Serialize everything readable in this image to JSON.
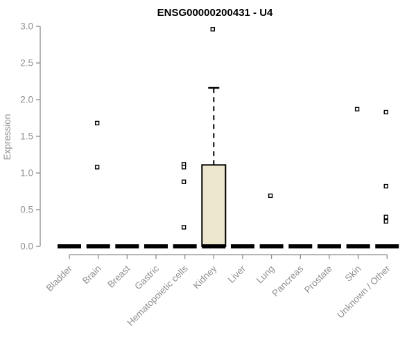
{
  "chart_data": {
    "type": "boxplot",
    "title": "ENSG00000200431 - U4",
    "ylabel": "Expression",
    "xlabel": "",
    "ylim": [
      0.0,
      3.0
    ],
    "yticks": [
      0.0,
      0.5,
      1.0,
      1.5,
      2.0,
      2.5,
      3.0
    ],
    "grid": false,
    "legend": false,
    "categories": [
      "Bladder",
      "Brain",
      "Breast",
      "Gastric",
      "Hematopoietic cells",
      "Kidney",
      "Liver",
      "Lung",
      "Pancreas",
      "Prostate",
      "Skin",
      "Unknown / Other"
    ],
    "boxes": [
      {
        "category": "Bladder",
        "q1": 0.0,
        "median": 0.0,
        "q3": 0.0,
        "whisker_low": 0.0,
        "whisker_high": 0.0,
        "outliers": []
      },
      {
        "category": "Brain",
        "q1": 0.0,
        "median": 0.0,
        "q3": 0.0,
        "whisker_low": 0.0,
        "whisker_high": 0.0,
        "outliers": [
          1.68,
          1.08
        ]
      },
      {
        "category": "Breast",
        "q1": 0.0,
        "median": 0.0,
        "q3": 0.0,
        "whisker_low": 0.0,
        "whisker_high": 0.0,
        "outliers": []
      },
      {
        "category": "Gastric",
        "q1": 0.0,
        "median": 0.0,
        "q3": 0.0,
        "whisker_low": 0.0,
        "whisker_high": 0.0,
        "outliers": []
      },
      {
        "category": "Hematopoietic cells",
        "q1": 0.0,
        "median": 0.0,
        "q3": 0.0,
        "whisker_low": 0.0,
        "whisker_high": 0.0,
        "outliers": [
          1.12,
          1.08,
          0.88,
          0.26
        ]
      },
      {
        "category": "Kidney",
        "q1": 0.0,
        "median": 0.0,
        "q3": 1.11,
        "whisker_low": 0.0,
        "whisker_high": 2.16,
        "outliers": [
          2.96
        ]
      },
      {
        "category": "Liver",
        "q1": 0.0,
        "median": 0.0,
        "q3": 0.0,
        "whisker_low": 0.0,
        "whisker_high": 0.0,
        "outliers": []
      },
      {
        "category": "Lung",
        "q1": 0.0,
        "median": 0.0,
        "q3": 0.0,
        "whisker_low": 0.0,
        "whisker_high": 0.0,
        "outliers": [
          0.69
        ]
      },
      {
        "category": "Pancreas",
        "q1": 0.0,
        "median": 0.0,
        "q3": 0.0,
        "whisker_low": 0.0,
        "whisker_high": 0.0,
        "outliers": []
      },
      {
        "category": "Prostate",
        "q1": 0.0,
        "median": 0.0,
        "q3": 0.0,
        "whisker_low": 0.0,
        "whisker_high": 0.0,
        "outliers": []
      },
      {
        "category": "Skin",
        "q1": 0.0,
        "median": 0.0,
        "q3": 0.0,
        "whisker_low": 0.0,
        "whisker_high": 0.0,
        "outliers": [
          1.87
        ]
      },
      {
        "category": "Unknown / Other",
        "q1": 0.0,
        "median": 0.0,
        "q3": 0.0,
        "whisker_low": 0.0,
        "whisker_high": 0.0,
        "outliers": [
          1.83,
          0.82,
          0.4,
          0.34
        ]
      }
    ],
    "colors": {
      "box_fill": "#ECE7CD",
      "box_stroke": "#000000",
      "median_color": "#000000",
      "outlier_color": "#000000",
      "axis_color": "#8C8C8C",
      "tick_label_color": "#909090",
      "title_color": "#000000",
      "background": "#FFFFFF"
    }
  }
}
